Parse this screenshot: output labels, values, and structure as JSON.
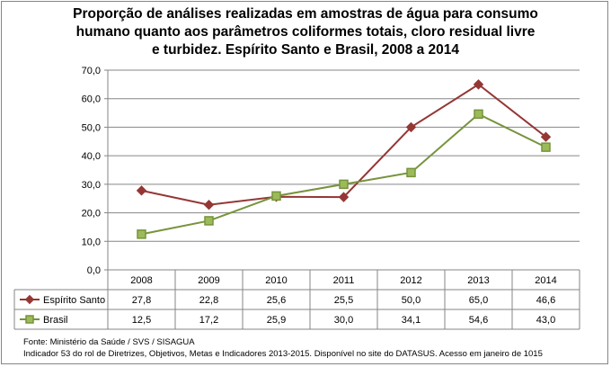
{
  "title_lines": [
    "Proporção de análises realizadas em amostras de água para consumo",
    "humano quanto aos parâmetros coliformes totais, cloro residual livre",
    "e turbidez. Espírito Santo e Brasil, 2008 a 2014"
  ],
  "footer": {
    "line1": "Fonte: Ministério da Saúde / SVS / SISAGUA",
    "line2": "Indicador 53 do rol de Diretrizes, Objetivos, Metas e Indicadores 2013-2015. Disponível no site do DATASUS. Acesso em janeiro de 1015"
  },
  "chart_data": {
    "type": "line",
    "title": "Proporção de análises realizadas em amostras de água para consumo humano quanto aos parâmetros coliformes totais, cloro residual livre e turbidez. Espírito Santo e Brasil, 2008 a 2014",
    "categories": [
      "2008",
      "2009",
      "2010",
      "2011",
      "2012",
      "2013",
      "2014"
    ],
    "ylim": [
      0,
      70
    ],
    "yticks": [
      "0,0",
      "10,0",
      "20,0",
      "30,0",
      "40,0",
      "50,0",
      "60,0",
      "70,0"
    ],
    "grid": true,
    "legend": "data-table",
    "series": [
      {
        "name": "Espírito Santo",
        "values": [
          27.8,
          22.8,
          25.6,
          25.5,
          50.0,
          65.0,
          46.6
        ],
        "labels": [
          "27,8",
          "22,8",
          "25,6",
          "25,5",
          "50,0",
          "65,0",
          "46,6"
        ],
        "color": "#953735",
        "marker": "diamond"
      },
      {
        "name": "Brasil",
        "values": [
          12.5,
          17.2,
          25.9,
          30.0,
          34.1,
          54.6,
          43.0
        ],
        "labels": [
          "12,5",
          "17,2",
          "25,9",
          "30,0",
          "34,1",
          "54,6",
          "43,0"
        ],
        "color": "#77933C",
        "marker": "square"
      }
    ]
  }
}
